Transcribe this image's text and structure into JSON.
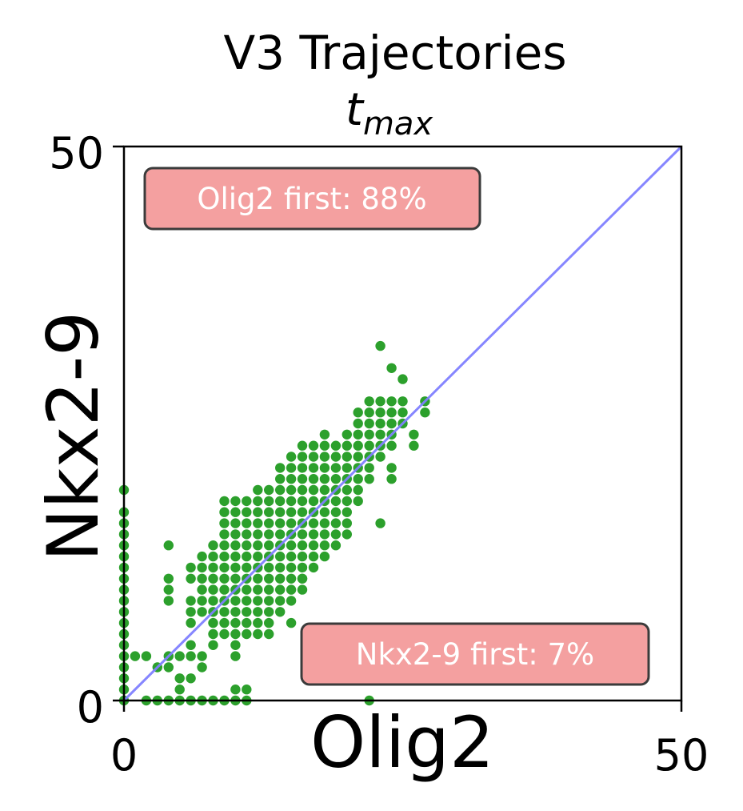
{
  "chart_data": {
    "type": "scatter",
    "title": "V3 Trajectories",
    "subtitle": {
      "base": "t",
      "subscript": "max"
    },
    "xlabel": "Olig2",
    "ylabel": "Nkx2-9",
    "xlim": [
      0,
      50
    ],
    "ylim": [
      0,
      50
    ],
    "xticks": [
      "0",
      "50"
    ],
    "yticks": [
      "0",
      "50"
    ],
    "grid": false,
    "point_color": "#2ca02c",
    "reference_line": {
      "x": [
        0,
        50
      ],
      "y": [
        0,
        50
      ],
      "color": "#8080ff"
    },
    "annotations": [
      {
        "text": "Olig2 first: 88%",
        "position": "top-left",
        "color": "#f4a0a0"
      },
      {
        "text": "Nkx2-9 first: 7%",
        "position": "bottom-right",
        "color": "#f4a0a0"
      }
    ],
    "points": [
      [
        0,
        19
      ],
      [
        0,
        17
      ],
      [
        0,
        16
      ],
      [
        0,
        15
      ],
      [
        0,
        14
      ],
      [
        0,
        13
      ],
      [
        0,
        12
      ],
      [
        0,
        11
      ],
      [
        0,
        10
      ],
      [
        0,
        9
      ],
      [
        0,
        8
      ],
      [
        0,
        7
      ],
      [
        0,
        6
      ],
      [
        0,
        5
      ],
      [
        0,
        4
      ],
      [
        0,
        3
      ],
      [
        0,
        2
      ],
      [
        0,
        1
      ],
      [
        0,
        0
      ],
      [
        1,
        4
      ],
      [
        2,
        4
      ],
      [
        2,
        0
      ],
      [
        3,
        3
      ],
      [
        4,
        3
      ],
      [
        3,
        0
      ],
      [
        4,
        0
      ],
      [
        4,
        4
      ],
      [
        5,
        4
      ],
      [
        5,
        0
      ],
      [
        4,
        10
      ],
      [
        4,
        9
      ],
      [
        4,
        11
      ],
      [
        4,
        14
      ],
      [
        5,
        1
      ],
      [
        5,
        2
      ],
      [
        6,
        0
      ],
      [
        6,
        2
      ],
      [
        6,
        4
      ],
      [
        6,
        5
      ],
      [
        6,
        12
      ],
      [
        6,
        11
      ],
      [
        6,
        9
      ],
      [
        6,
        8
      ],
      [
        6,
        7
      ],
      [
        7,
        3
      ],
      [
        7,
        0
      ],
      [
        7,
        8
      ],
      [
        7,
        9
      ],
      [
        7,
        10
      ],
      [
        7,
        11
      ],
      [
        7,
        12
      ],
      [
        7,
        13
      ],
      [
        8,
        6
      ],
      [
        8,
        7
      ],
      [
        8,
        8
      ],
      [
        8,
        9
      ],
      [
        8,
        10
      ],
      [
        8,
        11
      ],
      [
        8,
        12
      ],
      [
        8,
        13
      ],
      [
        8,
        14
      ],
      [
        8,
        0
      ],
      [
        9,
        7
      ],
      [
        9,
        8
      ],
      [
        9,
        9
      ],
      [
        9,
        10
      ],
      [
        9,
        11
      ],
      [
        9,
        12
      ],
      [
        9,
        13
      ],
      [
        9,
        14
      ],
      [
        9,
        15
      ],
      [
        9,
        16
      ],
      [
        9,
        17
      ],
      [
        9,
        18
      ],
      [
        9,
        0
      ],
      [
        10,
        6
      ],
      [
        10,
        7
      ],
      [
        10,
        8
      ],
      [
        10,
        9
      ],
      [
        10,
        10
      ],
      [
        10,
        11
      ],
      [
        10,
        12
      ],
      [
        10,
        13
      ],
      [
        10,
        14
      ],
      [
        10,
        15
      ],
      [
        10,
        16
      ],
      [
        10,
        17
      ],
      [
        10,
        18
      ],
      [
        10,
        0
      ],
      [
        11,
        0
      ],
      [
        11,
        7
      ],
      [
        11,
        8
      ],
      [
        11,
        9
      ],
      [
        11,
        10
      ],
      [
        11,
        11
      ],
      [
        11,
        12
      ],
      [
        11,
        13
      ],
      [
        11,
        14
      ],
      [
        11,
        15
      ],
      [
        11,
        16
      ],
      [
        11,
        17
      ],
      [
        11,
        18
      ],
      [
        12,
        6
      ],
      [
        12,
        8
      ],
      [
        12,
        9
      ],
      [
        12,
        10
      ],
      [
        12,
        11
      ],
      [
        12,
        12
      ],
      [
        12,
        13
      ],
      [
        12,
        14
      ],
      [
        12,
        15
      ],
      [
        12,
        16
      ],
      [
        12,
        17
      ],
      [
        12,
        18
      ],
      [
        12,
        19
      ],
      [
        13,
        7
      ],
      [
        13,
        8
      ],
      [
        13,
        9
      ],
      [
        13,
        10
      ],
      [
        13,
        11
      ],
      [
        13,
        12
      ],
      [
        13,
        13
      ],
      [
        13,
        14
      ],
      [
        13,
        15
      ],
      [
        13,
        16
      ],
      [
        13,
        17
      ],
      [
        13,
        18
      ],
      [
        13,
        19
      ],
      [
        14,
        8
      ],
      [
        14,
        9
      ],
      [
        14,
        10
      ],
      [
        14,
        11
      ],
      [
        14,
        12
      ],
      [
        14,
        13
      ],
      [
        14,
        14
      ],
      [
        14,
        15
      ],
      [
        14,
        16
      ],
      [
        14,
        17
      ],
      [
        14,
        18
      ],
      [
        14,
        19
      ],
      [
        14,
        20
      ],
      [
        14,
        21
      ],
      [
        15,
        9
      ],
      [
        15,
        10
      ],
      [
        15,
        11
      ],
      [
        15,
        12
      ],
      [
        15,
        13
      ],
      [
        15,
        14
      ],
      [
        15,
        15
      ],
      [
        15,
        16
      ],
      [
        15,
        17
      ],
      [
        15,
        18
      ],
      [
        15,
        19
      ],
      [
        15,
        20
      ],
      [
        15,
        21
      ],
      [
        15,
        22
      ],
      [
        16,
        10
      ],
      [
        16,
        11
      ],
      [
        16,
        12
      ],
      [
        16,
        13
      ],
      [
        16,
        14
      ],
      [
        16,
        15
      ],
      [
        16,
        16
      ],
      [
        16,
        17
      ],
      [
        16,
        18
      ],
      [
        16,
        19
      ],
      [
        16,
        20
      ],
      [
        16,
        21
      ],
      [
        16,
        22
      ],
      [
        16,
        23
      ],
      [
        17,
        13
      ],
      [
        17,
        14
      ],
      [
        17,
        15
      ],
      [
        17,
        16
      ],
      [
        17,
        17
      ],
      [
        17,
        18
      ],
      [
        17,
        19
      ],
      [
        17,
        20
      ],
      [
        17,
        21
      ],
      [
        17,
        22
      ],
      [
        17,
        23
      ],
      [
        18,
        13
      ],
      [
        18,
        15
      ],
      [
        18,
        16
      ],
      [
        18,
        17
      ],
      [
        18,
        18
      ],
      [
        18,
        19
      ],
      [
        18,
        20
      ],
      [
        18,
        21
      ],
      [
        18,
        22
      ],
      [
        18,
        23
      ],
      [
        18,
        24
      ],
      [
        19,
        15
      ],
      [
        19,
        16
      ],
      [
        19,
        17
      ],
      [
        19,
        18
      ],
      [
        19,
        19
      ],
      [
        19,
        20
      ],
      [
        19,
        21
      ],
      [
        19,
        22
      ],
      [
        19,
        23
      ],
      [
        20,
        16
      ],
      [
        20,
        17
      ],
      [
        20,
        18
      ],
      [
        20,
        19
      ],
      [
        20,
        20
      ],
      [
        20,
        21
      ],
      [
        20,
        22
      ],
      [
        20,
        23
      ],
      [
        20,
        24
      ],
      [
        21,
        18
      ],
      [
        21,
        19
      ],
      [
        21,
        20
      ],
      [
        21,
        21
      ],
      [
        21,
        22
      ],
      [
        21,
        23
      ],
      [
        21,
        24
      ],
      [
        21,
        25
      ],
      [
        21,
        26
      ],
      [
        22,
        20
      ],
      [
        22,
        21
      ],
      [
        22,
        22
      ],
      [
        22,
        23
      ],
      [
        22,
        24
      ],
      [
        22,
        25
      ],
      [
        22,
        26
      ],
      [
        22,
        27
      ],
      [
        22,
        0
      ],
      [
        23,
        22
      ],
      [
        23,
        23
      ],
      [
        23,
        24
      ],
      [
        23,
        25
      ],
      [
        23,
        26
      ],
      [
        23,
        27
      ],
      [
        24,
        23
      ],
      [
        24,
        24
      ],
      [
        24,
        25
      ],
      [
        24,
        26
      ],
      [
        24,
        27
      ],
      [
        25,
        25
      ],
      [
        25,
        26
      ],
      [
        25,
        27
      ],
      [
        26,
        24
      ],
      [
        26,
        23
      ],
      [
        27,
        26
      ],
      [
        27,
        27
      ],
      [
        23,
        16
      ],
      [
        24,
        21
      ],
      [
        24,
        20
      ],
      [
        20,
        15
      ],
      [
        19,
        14
      ],
      [
        18,
        14
      ],
      [
        17,
        12
      ],
      [
        16,
        11
      ],
      [
        15,
        7
      ],
      [
        13,
        6
      ],
      [
        12,
        7
      ],
      [
        11,
        6
      ],
      [
        10,
        5
      ],
      [
        9,
        6
      ],
      [
        8,
        5
      ],
      [
        7,
        4
      ],
      [
        10,
        1
      ],
      [
        11,
        1
      ],
      [
        10,
        4
      ],
      [
        23,
        32
      ],
      [
        24,
        30
      ],
      [
        25,
        29
      ]
    ]
  }
}
